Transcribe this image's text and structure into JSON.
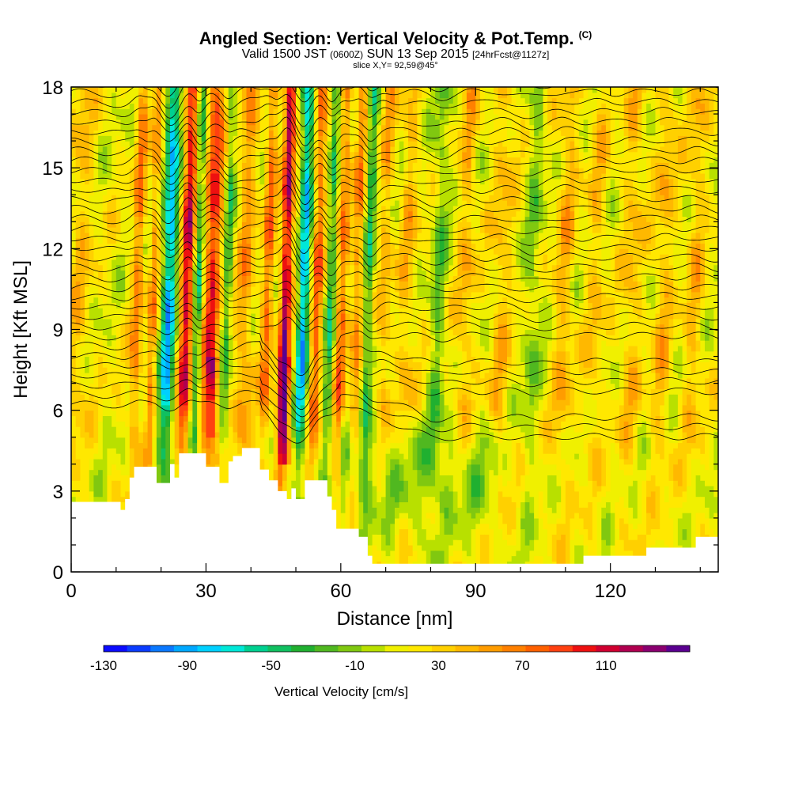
{
  "header": {
    "title": "Angled Section: Vertical Velocity & Pot.Temp.",
    "title_units": "(C)",
    "valid_prefix": "Valid 1500 JST",
    "valid_utc": "(0600Z)",
    "valid_date": "SUN 13 Sep 2015",
    "forecast": "[24hrFcst@1127z]",
    "slice": "slice X,Y= 92,59@45°"
  },
  "chart_data": {
    "type": "heatmap",
    "xlabel": "Distance [nm]",
    "ylabel": "Height [Kft MSL]",
    "xlim": [
      0,
      144
    ],
    "ylim": [
      0,
      18
    ],
    "x_ticks": [
      "0",
      "30",
      "60",
      "90",
      "120"
    ],
    "y_ticks": [
      "0",
      "3",
      "6",
      "9",
      "12",
      "15",
      "18"
    ],
    "colorbar": {
      "label": "Vertical Velocity [cm/s]",
      "range": [
        -130,
        150
      ],
      "tick_labels": [
        "-130",
        "-90",
        "-50",
        "-10",
        "30",
        "70",
        "110"
      ],
      "colors": [
        "#0b0bff",
        "#0a3cff",
        "#0a78ff",
        "#00a8ff",
        "#00d0ff",
        "#00e8d8",
        "#00d090",
        "#10c060",
        "#20b030",
        "#50b820",
        "#80c810",
        "#b8e000",
        "#f0f000",
        "#ffe800",
        "#ffd000",
        "#ffb800",
        "#ff9c00",
        "#ff8000",
        "#ff6000",
        "#ff4010",
        "#ee1010",
        "#d00030",
        "#b00050",
        "#8a0070",
        "#5a0090"
      ]
    },
    "terrain_kft": [
      [
        0,
        2.6
      ],
      [
        5,
        2.6
      ],
      [
        10,
        2.6
      ],
      [
        11,
        2.3
      ],
      [
        12,
        2.7
      ],
      [
        13,
        3.5
      ],
      [
        14,
        3.9
      ],
      [
        18,
        3.9
      ],
      [
        19,
        3.3
      ],
      [
        21,
        3.3
      ],
      [
        22,
        4.0
      ],
      [
        23,
        3.5
      ],
      [
        24,
        4.4
      ],
      [
        28,
        4.4
      ],
      [
        30,
        3.9
      ],
      [
        32,
        3.9
      ],
      [
        33,
        3.3
      ],
      [
        35,
        4.1
      ],
      [
        36,
        4.3
      ],
      [
        38,
        4.6
      ],
      [
        40,
        4.6
      ],
      [
        42,
        3.8
      ],
      [
        44,
        3.4
      ],
      [
        46,
        3.0
      ],
      [
        48,
        2.7
      ],
      [
        49,
        3.1
      ],
      [
        50,
        2.7
      ],
      [
        52,
        3.4
      ],
      [
        55,
        3.4
      ],
      [
        57,
        2.8
      ],
      [
        58,
        2.3
      ],
      [
        59,
        1.6
      ],
      [
        63,
        1.6
      ],
      [
        64,
        1.3
      ],
      [
        66,
        0.6
      ],
      [
        67,
        0.3
      ],
      [
        80,
        0.3
      ],
      [
        113,
        0.3
      ],
      [
        114,
        0.6
      ],
      [
        125,
        0.6
      ],
      [
        128,
        0.9
      ],
      [
        138,
        0.9
      ],
      [
        139,
        1.3
      ],
      [
        144,
        1.3
      ]
    ],
    "updraft_bands": [
      {
        "x": 2,
        "w": 2.5,
        "amp": 22
      },
      {
        "x": 15,
        "w": 1.2,
        "amp": 50
      },
      {
        "x": 18.5,
        "w": 1.0,
        "amp": 45
      },
      {
        "x": 22,
        "w": 1.6,
        "amp": -95
      },
      {
        "x": 26,
        "w": 1.4,
        "amp": 95
      },
      {
        "x": 28.5,
        "w": 1.0,
        "amp": -55
      },
      {
        "x": 31.5,
        "w": 1.8,
        "amp": 80
      },
      {
        "x": 35,
        "w": 1.0,
        "amp": -40
      },
      {
        "x": 39,
        "w": 1.8,
        "amp": 40
      },
      {
        "x": 44,
        "w": 1.2,
        "amp": 55
      },
      {
        "x": 48,
        "w": 1.2,
        "amp": 110
      },
      {
        "x": 52,
        "w": 1.3,
        "amp": -95
      },
      {
        "x": 55,
        "w": 1.2,
        "amp": 60
      },
      {
        "x": 58,
        "w": 1.0,
        "amp": -50
      },
      {
        "x": 60.5,
        "w": 1.2,
        "amp": 55
      },
      {
        "x": 64,
        "w": 1.2,
        "amp": 45
      },
      {
        "x": 66.5,
        "w": 1.1,
        "amp": -50
      },
      {
        "x": 70,
        "w": 1.4,
        "amp": 30
      },
      {
        "x": 75,
        "w": 1.8,
        "amp": 25
      },
      {
        "x": 82,
        "w": 1.6,
        "amp": -30
      },
      {
        "x": 88,
        "w": 1.8,
        "amp": 28
      },
      {
        "x": 96,
        "w": 2.2,
        "amp": 25
      },
      {
        "x": 103,
        "w": 1.8,
        "amp": -25
      },
      {
        "x": 110,
        "w": 2.0,
        "amp": 30
      },
      {
        "x": 117,
        "w": 2.0,
        "amp": 22
      },
      {
        "x": 125,
        "w": 2.2,
        "amp": 25
      },
      {
        "x": 132,
        "w": 2.0,
        "amp": 28
      },
      {
        "x": 139,
        "w": 2.0,
        "amp": 25
      }
    ]
  }
}
